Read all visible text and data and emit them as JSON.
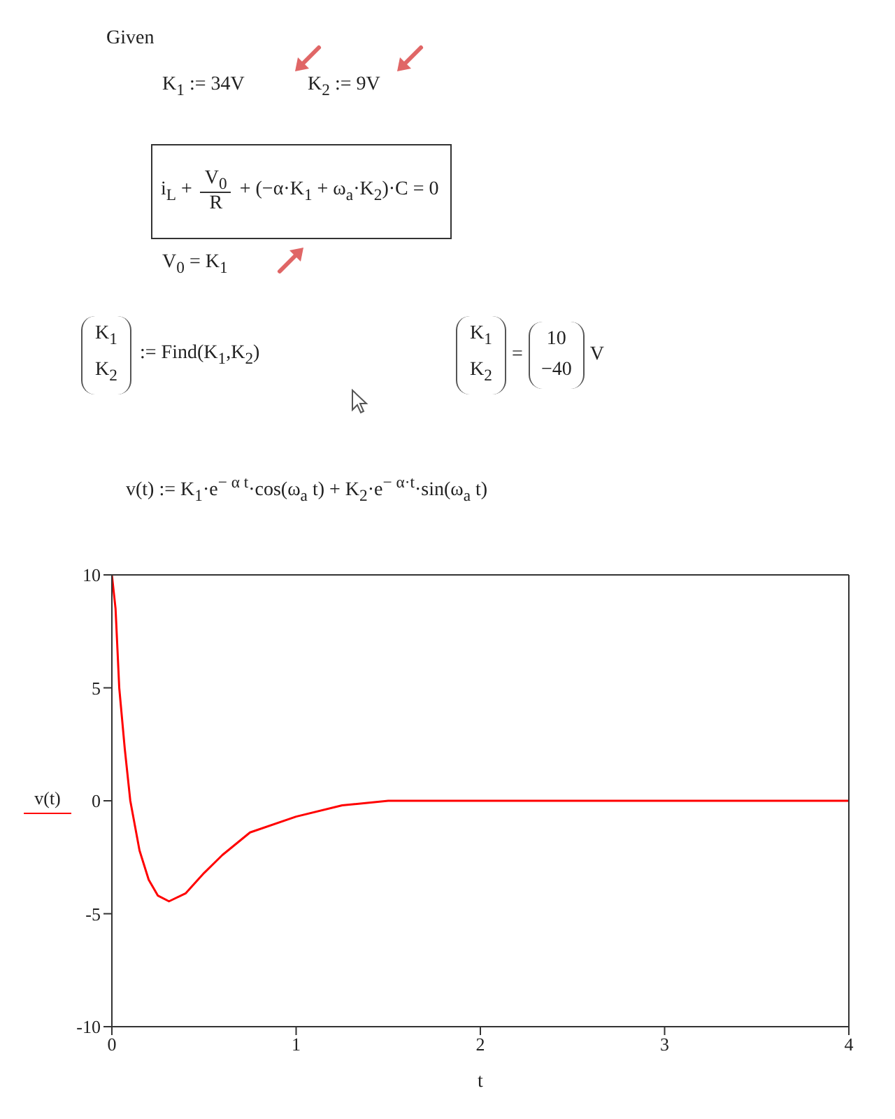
{
  "chart_data": {
    "type": "line",
    "xlabel": "t",
    "legend": "left",
    "marker": "none",
    "line_style": "solid",
    "xlim": [
      0,
      4
    ],
    "xticks": [
      0,
      1,
      2,
      3,
      4
    ],
    "ylim": [
      -10,
      10
    ],
    "yticks": [
      -10,
      -5,
      0,
      5,
      10
    ],
    "x": [
      0,
      0.02,
      0.04,
      0.07,
      0.1,
      0.15,
      0.2,
      0.25,
      0.31,
      0.4,
      0.5,
      0.6,
      0.75,
      1,
      1.25,
      1.5,
      2,
      3,
      4
    ],
    "series": [
      {
        "name": "v(t)",
        "color": "#ff0000",
        "values": [
          10,
          8.5,
          5,
          2.3,
          0,
          -2.2,
          -3.5,
          -4.2,
          -4.45,
          -4.1,
          -3.2,
          -2.4,
          -1.4,
          -0.7,
          -0.2,
          0,
          0,
          0,
          0
        ]
      }
    ],
    "annotations": [
      "Given",
      "K$_{1}$ := 34V",
      "K$_{2}$ := 9V",
      "i$_{L}$ +",
      "V$_{0}$",
      "R",
      "+ (−α·K$_{1}$ + ω$_{a}$·K$_{2}$)·C = 0",
      "V$_{0}$ = K$_{1}$",
      "K$_{1}$",
      "K$_{2}$",
      ":= Find(K$_{1}$,K$_{2}$)",
      "K$_{1}$",
      "K$_{2}$",
      "=",
      "10",
      "−40",
      "V",
      "v(t) := K$_{1}$·e$^{− α t}$·cos(ω$_{a}$ t) + K$_{2}$·e$^{− α·t}$·sin(ω$_{a}$ t)"
    ]
  }
}
